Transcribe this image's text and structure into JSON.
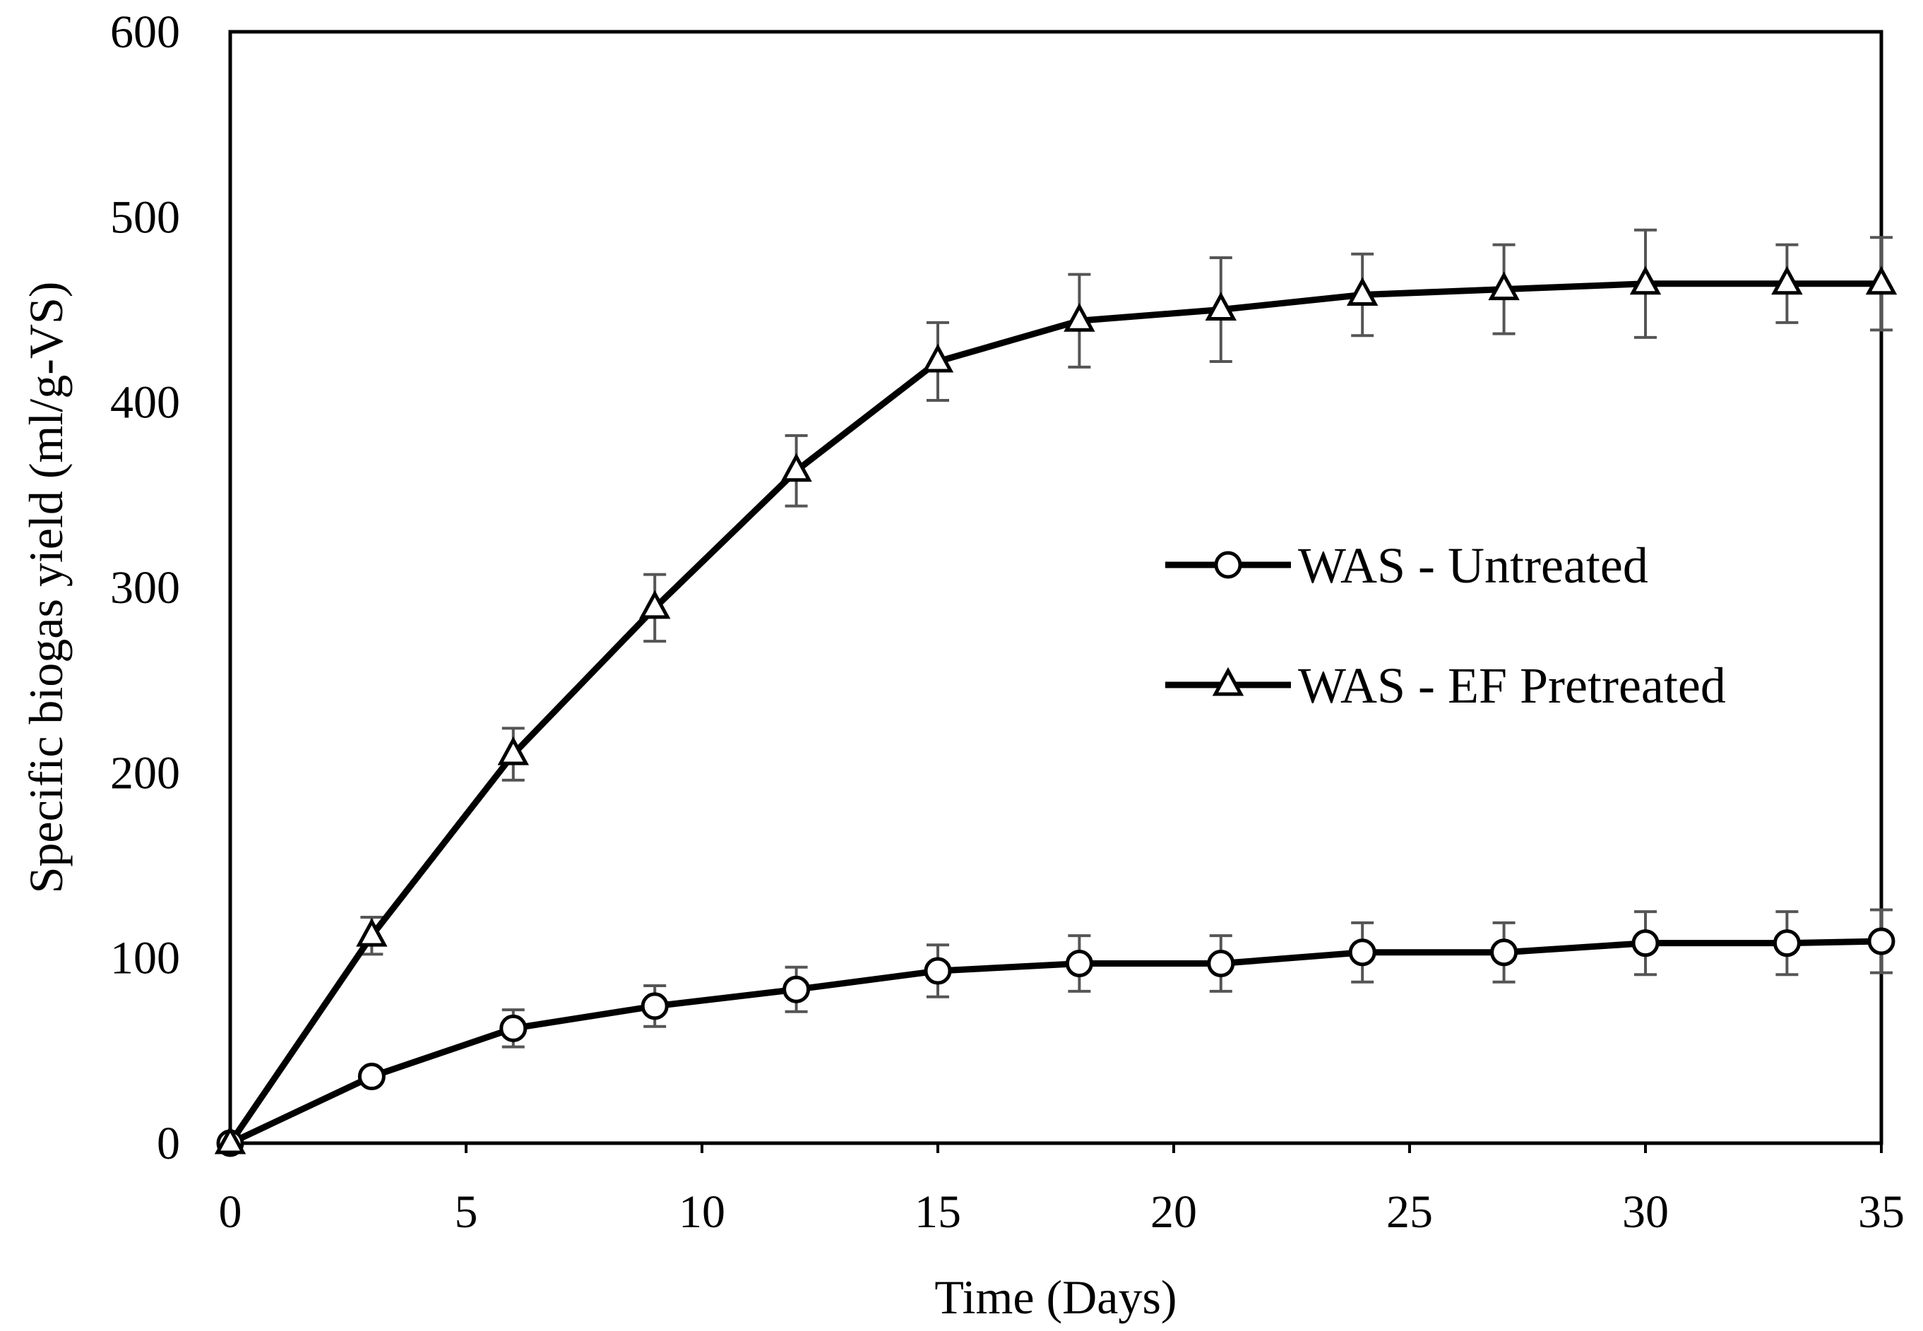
{
  "chart_data": {
    "type": "line",
    "title": "",
    "xlabel": "Time (Days)",
    "ylabel": "Specific biogas yield (ml/g-VS)",
    "xlim": [
      0,
      35
    ],
    "ylim": [
      0,
      600
    ],
    "xticks": [
      0,
      5,
      10,
      15,
      20,
      25,
      30,
      35
    ],
    "yticks": [
      0,
      100,
      200,
      300,
      400,
      500,
      600
    ],
    "grid": false,
    "legend_position": "center-right",
    "series": [
      {
        "name": "WAS - Untreated",
        "marker": "circle",
        "x": [
          0,
          3,
          6,
          9,
          12,
          15,
          18,
          21,
          24,
          27,
          30,
          33,
          35
        ],
        "y": [
          0,
          36,
          62,
          74,
          83,
          93,
          97,
          97,
          103,
          103,
          108,
          108,
          109
        ],
        "error": [
          0,
          0,
          10,
          11,
          12,
          14,
          15,
          15,
          16,
          16,
          17,
          17,
          17
        ]
      },
      {
        "name": "WAS - EF Pretreated",
        "marker": "triangle",
        "x": [
          0,
          3,
          6,
          9,
          12,
          15,
          18,
          21,
          24,
          27,
          30,
          33,
          35
        ],
        "y": [
          0,
          112,
          210,
          289,
          363,
          422,
          444,
          450,
          458,
          461,
          464,
          464,
          464
        ],
        "error": [
          0,
          10,
          14,
          18,
          19,
          21,
          25,
          28,
          22,
          24,
          29,
          21,
          25
        ]
      }
    ]
  }
}
